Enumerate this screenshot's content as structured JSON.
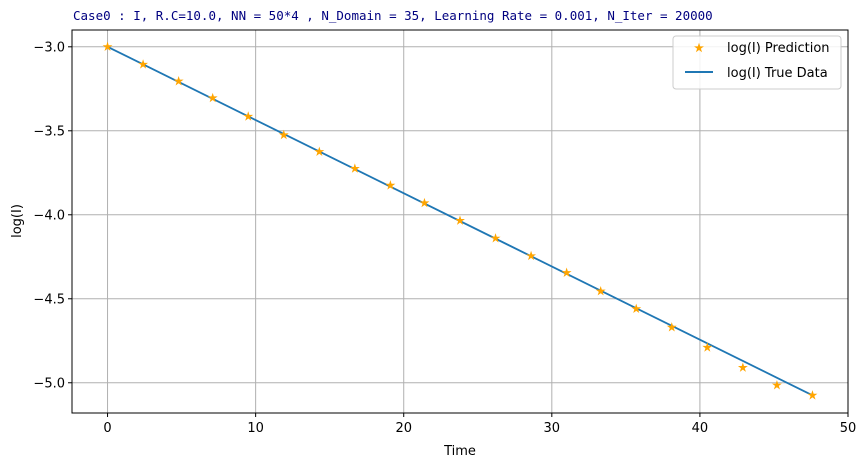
{
  "chart_data": {
    "type": "scatter",
    "title": "Case0 : I, R.C=10.0, NN = 50*4 , N_Domain = 35, Learning Rate = 0.001, N_Iter = 20000",
    "xlabel": "Time",
    "ylabel": "log(I)",
    "xlim": [
      -2.4,
      50
    ],
    "ylim": [
      -5.18,
      -2.9
    ],
    "xticks": [
      0,
      10,
      20,
      30,
      40,
      50
    ],
    "yticks": [
      -3.0,
      -3.5,
      -4.0,
      -4.5,
      -5.0
    ],
    "xtick_labels": [
      "0",
      "10",
      "20",
      "30",
      "40",
      "50"
    ],
    "ytick_labels": [
      "−3.0",
      "−3.5",
      "−4.0",
      "−4.5",
      "−5.0"
    ],
    "grid": true,
    "legend_position": "top-right",
    "series": [
      {
        "name": "log(I) Prediction",
        "type": "scatter",
        "marker": "star",
        "color": "#ffa500",
        "x": [
          0,
          2.4,
          4.8,
          7.1,
          9.5,
          11.9,
          14.3,
          16.7,
          19.1,
          21.4,
          23.8,
          26.2,
          28.6,
          31.0,
          33.3,
          35.7,
          38.1,
          40.5,
          42.9,
          45.2,
          47.6
        ],
        "y": [
          -3.0,
          -3.105,
          -3.205,
          -3.305,
          -3.415,
          -3.525,
          -3.625,
          -3.725,
          -3.825,
          -3.93,
          -4.035,
          -4.14,
          -4.245,
          -4.345,
          -4.455,
          -4.56,
          -4.67,
          -4.79,
          -4.91,
          -5.015,
          -5.075
        ]
      },
      {
        "name": "log(I) True Data",
        "type": "line",
        "color": "#1f77b4",
        "x": [
          0,
          47.6
        ],
        "y": [
          -3.0,
          -5.075
        ]
      }
    ]
  }
}
